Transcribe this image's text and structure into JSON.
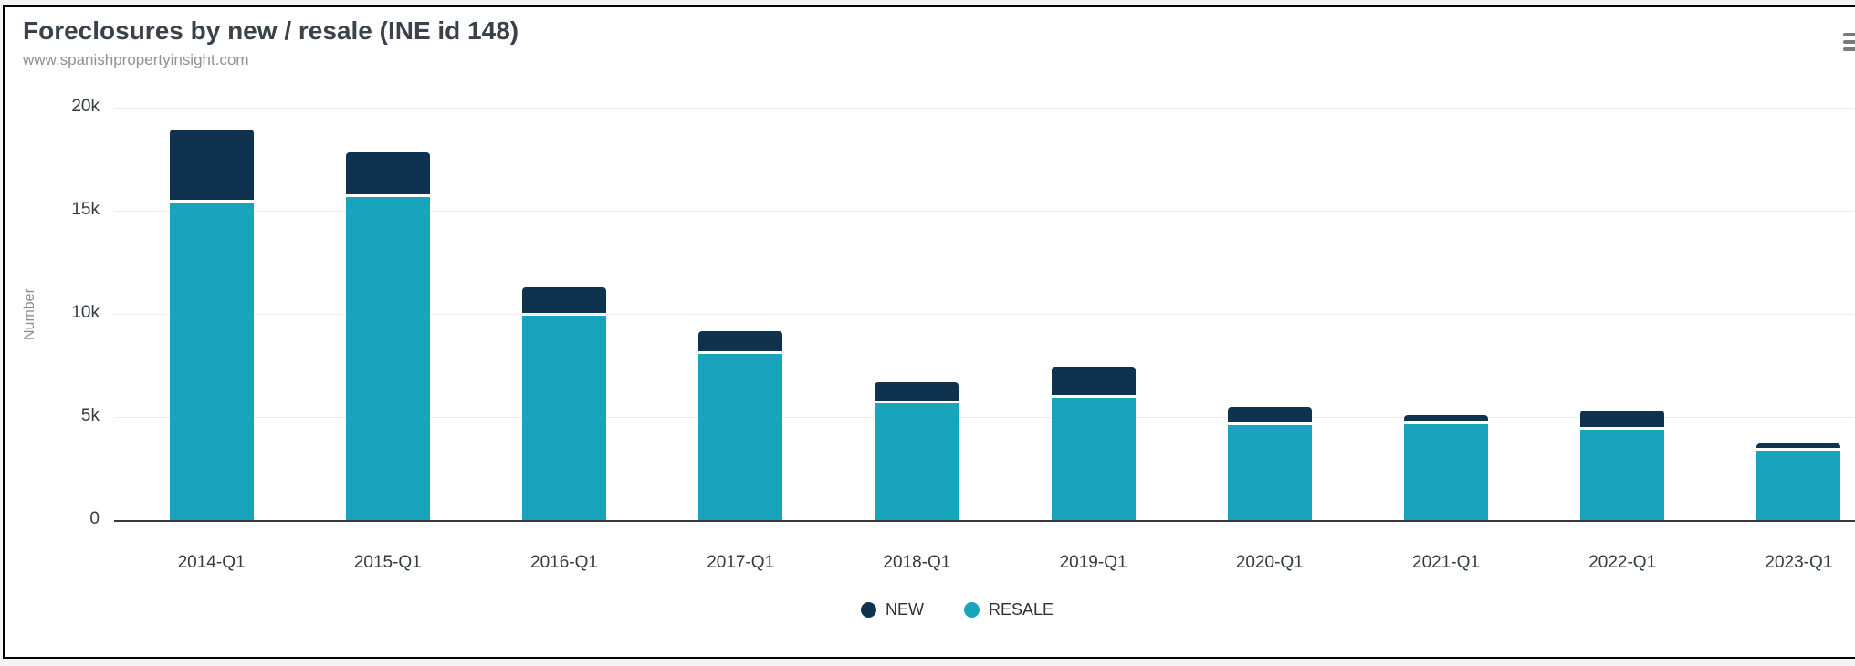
{
  "chart_data": {
    "type": "bar",
    "stacked": true,
    "title": "Foreclosures by new / resale (INE id 148)",
    "subtitle": "www.spanishpropertyinsight.com",
    "categories": [
      "2014-Q1",
      "2015-Q1",
      "2016-Q1",
      "2017-Q1",
      "2018-Q1",
      "2019-Q1",
      "2020-Q1",
      "2021-Q1",
      "2022-Q1",
      "2023-Q1"
    ],
    "series": [
      {
        "name": "NEW",
        "color": "#0f334e",
        "values": [
          3550,
          2200,
          1400,
          1100,
          1050,
          1500,
          900,
          450,
          900,
          350
        ]
      },
      {
        "name": "RESALE",
        "color": "#18a4bc",
        "values": [
          15400,
          15650,
          9900,
          8050,
          5650,
          5950,
          4600,
          4650,
          4400,
          3350
        ]
      }
    ],
    "totals": [
      18950,
      17850,
      11300,
      9150,
      6700,
      7450,
      5500,
      5100,
      5300,
      3700
    ],
    "ylabel": "Number",
    "ylim": [
      0,
      20000
    ],
    "ytick_labels": [
      "20k",
      "15k",
      "10k",
      "5k",
      "0"
    ],
    "ytick_values": [
      20000,
      15000,
      10000,
      5000,
      0
    ],
    "grid": true,
    "legend_position": "bottom-center",
    "segment_border_color": "#ffffff"
  },
  "icons": {
    "context_menu": "hamburger-menu-icon"
  }
}
